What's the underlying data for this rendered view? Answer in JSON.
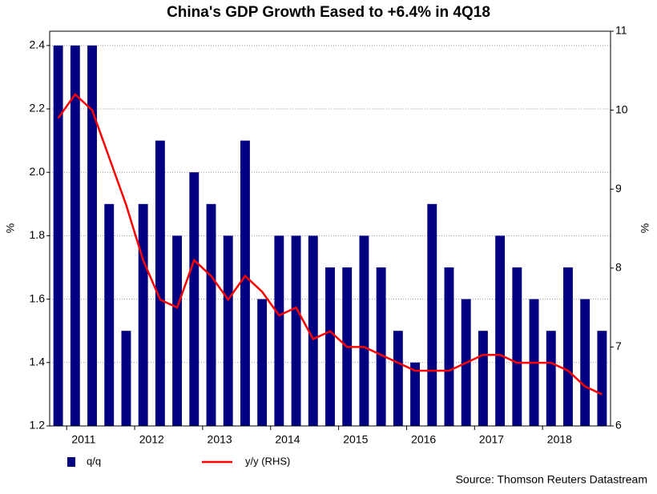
{
  "chart_data": {
    "type": "bar_line",
    "title": "China's GDP Growth Eased to +6.4% in 4Q18",
    "ylabel": "%",
    "y2label": "%",
    "source": "Source: Thomson Reuters Datastream",
    "categories": [
      null,
      "2011",
      null,
      null,
      null,
      "2012",
      null,
      null,
      null,
      "2013",
      null,
      null,
      null,
      "2014",
      null,
      null,
      null,
      "2015",
      null,
      null,
      null,
      "2016",
      null,
      null,
      null,
      "2017",
      null,
      null,
      null,
      "2018",
      null,
      null,
      null
    ],
    "series": [
      {
        "name": "q/q",
        "type": "bar",
        "color": "#000080",
        "values": [
          2.4,
          2.4,
          2.4,
          1.9,
          1.5,
          1.9,
          2.1,
          1.8,
          2.0,
          1.9,
          1.8,
          2.1,
          1.6,
          1.8,
          1.8,
          1.8,
          1.7,
          1.7,
          1.8,
          1.7,
          1.5,
          1.4,
          1.9,
          1.7,
          1.6,
          1.5,
          1.8,
          1.7,
          1.6,
          1.5,
          1.7,
          1.6,
          1.5
        ]
      },
      {
        "name": "y/y (RHS)",
        "type": "line",
        "axis": "y2",
        "color": "#ff0000",
        "values": [
          9.9,
          10.2,
          10.0,
          9.4,
          8.8,
          8.1,
          7.6,
          7.5,
          8.1,
          7.9,
          7.6,
          7.9,
          7.7,
          7.4,
          7.5,
          7.1,
          7.2,
          7.0,
          7.0,
          6.9,
          6.8,
          6.7,
          6.7,
          6.7,
          6.8,
          6.9,
          6.9,
          6.8,
          6.8,
          6.8,
          6.7,
          6.5,
          6.4
        ]
      }
    ],
    "ylim": [
      1.2,
      2.445
    ],
    "yticks": [
      1.2,
      1.4,
      1.6,
      1.8,
      {
        "value": 2.0,
        "label": "2.0"
      },
      2.2,
      2.4
    ],
    "y2lim": [
      6,
      11
    ],
    "y2ticks": [
      6,
      7,
      8,
      9,
      10,
      11
    ],
    "grid": true
  }
}
